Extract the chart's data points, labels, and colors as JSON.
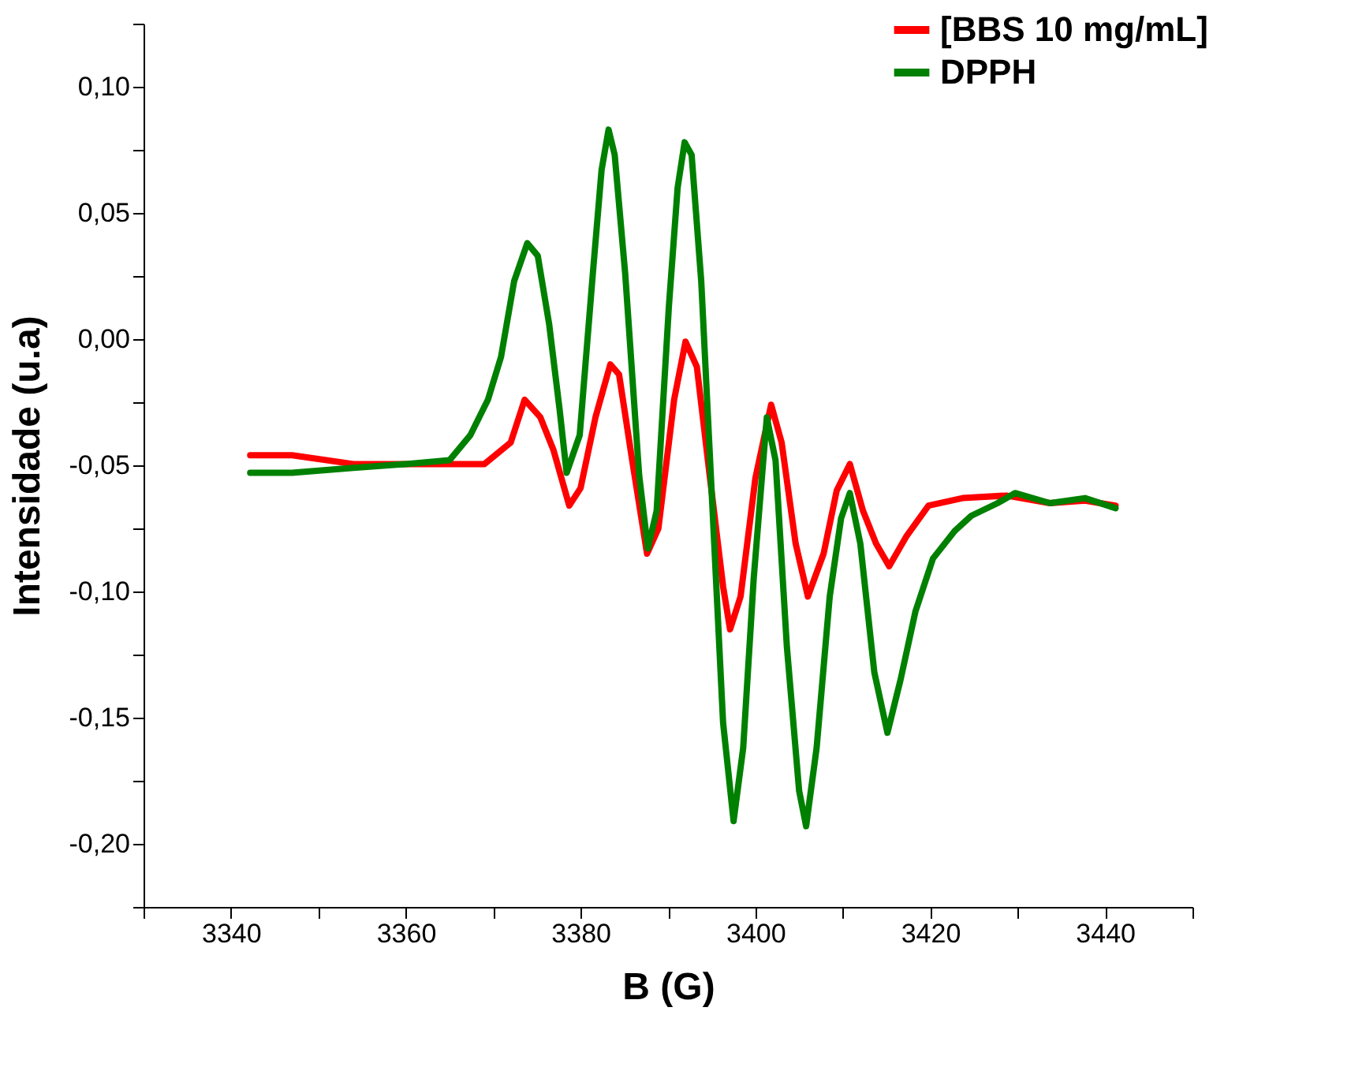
{
  "chart_data": {
    "type": "line",
    "xlabel": "B (G)",
    "ylabel": "Intensidade (u.a)",
    "xlim": [
      3330,
      3450
    ],
    "xticks": [
      {
        "value": 3330,
        "label": null
      },
      3340,
      {
        "value": 3350,
        "label": null
      },
      3360,
      {
        "value": 3370,
        "label": null
      },
      3380,
      {
        "value": 3390,
        "label": null
      },
      3400,
      {
        "value": 3410,
        "label": null
      },
      3420,
      {
        "value": 3430,
        "label": null
      },
      3440,
      {
        "value": 3450,
        "label": null
      }
    ],
    "ylim": [
      -0.225,
      0.125
    ],
    "yticks": [
      {
        "value": -0.225,
        "label": null
      },
      {
        "value": -0.2,
        "label": "-0,20"
      },
      {
        "value": -0.175,
        "label": null
      },
      {
        "value": -0.15,
        "label": "-0,15"
      },
      {
        "value": -0.125,
        "label": null
      },
      {
        "value": -0.1,
        "label": "-0,10"
      },
      {
        "value": -0.075,
        "label": null
      },
      {
        "value": -0.05,
        "label": "-0,05"
      },
      {
        "value": -0.025,
        "label": null
      },
      {
        "value": 0,
        "label": "0,00"
      },
      {
        "value": 0.025,
        "label": null
      },
      {
        "value": 0.05,
        "label": "0,05"
      },
      {
        "value": 0.075,
        "label": null
      },
      {
        "value": 0.1,
        "label": "0,10"
      },
      {
        "value": 0.125,
        "label": null
      }
    ],
    "grid": false,
    "legend": "top right",
    "marker": "none",
    "line_style": "solid",
    "series": [
      {
        "name": "[BBS 10 mg/mL]",
        "color": "#ff0000",
        "x": [
          3342.2,
          3347,
          3354,
          3364,
          3369,
          3372,
          3373.6,
          3375.4,
          3376.9,
          3378.7,
          3380,
          3381.7,
          3383.4,
          3384.4,
          3385.9,
          3387.6,
          3388.9,
          3390.7,
          3392,
          3393.3,
          3394.8,
          3396.3,
          3397.1,
          3398.3,
          3400,
          3401.8,
          3403,
          3404.6,
          3406,
          3407.8,
          3409.3,
          3410.8,
          3412.3,
          3413.8,
          3415.3,
          3417.3,
          3419.8,
          3423.7,
          3428.7,
          3433.7,
          3437.7,
          3441.2
        ],
        "values": [
          -0.046,
          -0.046,
          -0.0495,
          -0.0495,
          -0.0495,
          -0.041,
          -0.024,
          -0.031,
          -0.044,
          -0.066,
          -0.059,
          -0.031,
          -0.01,
          -0.014,
          -0.048,
          -0.085,
          -0.075,
          -0.024,
          -0.001,
          -0.011,
          -0.055,
          -0.098,
          -0.115,
          -0.102,
          -0.055,
          -0.026,
          -0.041,
          -0.081,
          -0.102,
          -0.085,
          -0.06,
          -0.0495,
          -0.068,
          -0.081,
          -0.09,
          -0.078,
          -0.066,
          -0.063,
          -0.062,
          -0.065,
          -0.064,
          -0.066
        ]
      },
      {
        "name": "DPPH",
        "color": "#008000",
        "x": [
          3342.2,
          3347,
          3354,
          3360,
          3365,
          3367.4,
          3369.4,
          3370.9,
          3372.4,
          3373.9,
          3375.1,
          3376.4,
          3377.6,
          3378.4,
          3379.9,
          3381.4,
          3382.4,
          3383.2,
          3383.9,
          3385.1,
          3386.7,
          3387.7,
          3388.7,
          3390.1,
          3391.1,
          3391.9,
          3392.7,
          3393.8,
          3395,
          3396.3,
          3397.5,
          3398.6,
          3399.8,
          3401.3,
          3402.3,
          3403.6,
          3405,
          3405.8,
          3407,
          3408.5,
          3409.8,
          3410.8,
          3412,
          3413.6,
          3415.1,
          3416.6,
          3418.3,
          3420.3,
          3422.8,
          3424.7,
          3427.7,
          3429.7,
          3433.7,
          3437.7,
          3441.2
        ],
        "values": [
          -0.053,
          -0.053,
          -0.051,
          -0.0495,
          -0.048,
          -0.038,
          -0.024,
          -0.007,
          0.023,
          0.038,
          0.033,
          0.006,
          -0.028,
          -0.053,
          -0.038,
          0.026,
          0.067,
          0.083,
          0.073,
          0.026,
          -0.054,
          -0.083,
          -0.068,
          0.013,
          0.06,
          0.078,
          0.073,
          0.023,
          -0.061,
          -0.152,
          -0.191,
          -0.162,
          -0.095,
          -0.031,
          -0.048,
          -0.122,
          -0.179,
          -0.193,
          -0.162,
          -0.102,
          -0.071,
          -0.061,
          -0.081,
          -0.132,
          -0.156,
          -0.135,
          -0.108,
          -0.087,
          -0.076,
          -0.07,
          -0.065,
          -0.061,
          -0.065,
          -0.063,
          -0.067
        ]
      }
    ]
  }
}
